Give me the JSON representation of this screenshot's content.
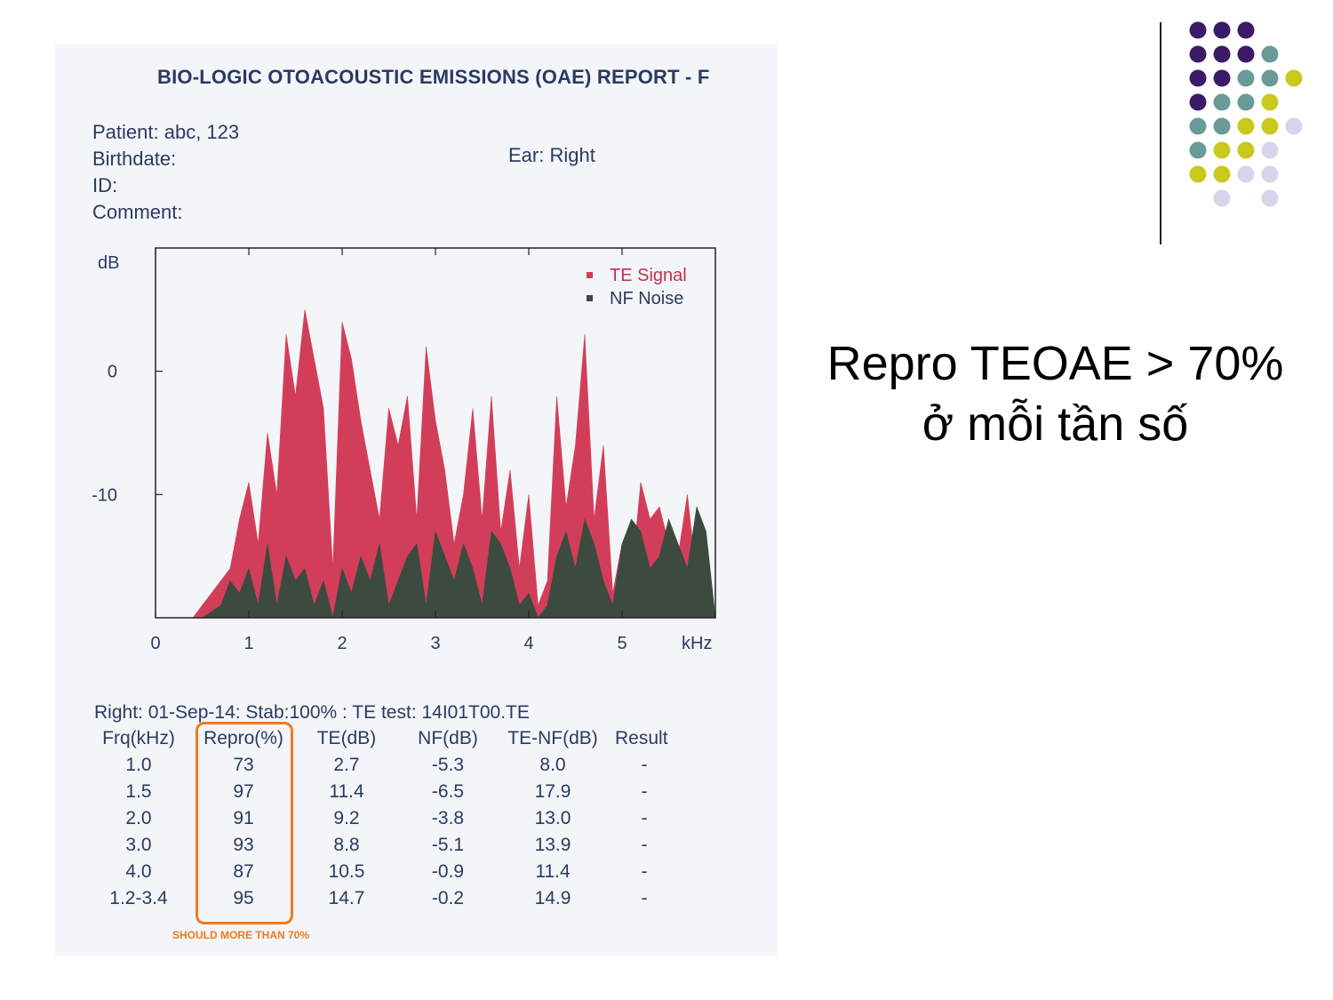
{
  "report": {
    "title": "BIO-LOGIC OTOACOUSTIC EMISSIONS (OAE) REPORT - F",
    "patient": "Patient: abc, 123",
    "birthdate": "Birthdate:",
    "id": "ID:",
    "comment": "Comment:",
    "ear": "Ear: Right",
    "test_line": "Right: 01-Sep-14: Stab:100% : TE test: 14I01T00.TE",
    "note": "SHOULD MORE THAN 70%",
    "table": {
      "headers": [
        "Frq(kHz)",
        "Repro(%)",
        "TE(dB)",
        "NF(dB)",
        "TE-NF(dB)",
        "Result"
      ],
      "rows": [
        [
          "1.0",
          "73",
          "2.7",
          "-5.3",
          "8.0",
          "-"
        ],
        [
          "1.5",
          "97",
          "11.4",
          "-6.5",
          "17.9",
          "-"
        ],
        [
          "2.0",
          "91",
          "9.2",
          "-3.8",
          "13.0",
          "-"
        ],
        [
          "3.0",
          "93",
          "8.8",
          "-5.1",
          "13.9",
          "-"
        ],
        [
          "4.0",
          "87",
          "10.5",
          "-0.9",
          "11.4",
          "-"
        ],
        [
          "1.2-3.4",
          "95",
          "14.7",
          "-0.2",
          "14.9",
          "-"
        ]
      ]
    }
  },
  "chart_data": {
    "type": "area",
    "ylabel": "dB",
    "xlabel": "kHz",
    "xlim": [
      0,
      6
    ],
    "ylim": [
      -20,
      10
    ],
    "xticks": [
      "0",
      "1",
      "2",
      "3",
      "4",
      "5"
    ],
    "yticks": [
      "0",
      "-10"
    ],
    "series": [
      {
        "name": "TE Signal",
        "color": "#d23e5a",
        "x": [
          0.4,
          0.5,
          0.6,
          0.7,
          0.8,
          0.9,
          1.0,
          1.1,
          1.2,
          1.3,
          1.4,
          1.5,
          1.6,
          1.7,
          1.8,
          1.9,
          2.0,
          2.1,
          2.2,
          2.3,
          2.4,
          2.5,
          2.6,
          2.7,
          2.8,
          2.9,
          3.0,
          3.1,
          3.2,
          3.3,
          3.4,
          3.5,
          3.6,
          3.7,
          3.8,
          3.9,
          4.0,
          4.1,
          4.2,
          4.3,
          4.4,
          4.5,
          4.6,
          4.7,
          4.8,
          4.9,
          5.0,
          5.1,
          5.2,
          5.3,
          5.4,
          5.5,
          5.6,
          5.7,
          5.8,
          5.9,
          6.0
        ],
        "y": [
          -20,
          -19,
          -18,
          -17,
          -16,
          -12,
          -9,
          -14,
          -5,
          -10,
          3,
          -2,
          5,
          1,
          -3,
          -16,
          4,
          1,
          -4,
          -8,
          -12,
          -3,
          -6,
          -2,
          -12,
          2,
          -4,
          -8,
          -14,
          -10,
          -3,
          -12,
          -2,
          -13,
          -8,
          -16,
          -10,
          -19,
          -17,
          -2,
          -11,
          -6,
          3,
          -12,
          -6,
          -18,
          -14,
          -17,
          -9,
          -12,
          -11,
          -14,
          -15,
          -10,
          -17,
          -18,
          -20
        ]
      },
      {
        "name": "NF Noise",
        "color": "#3c4a3f",
        "x": [
          0.4,
          0.5,
          0.6,
          0.7,
          0.8,
          0.9,
          1.0,
          1.1,
          1.2,
          1.3,
          1.4,
          1.5,
          1.6,
          1.7,
          1.8,
          1.9,
          2.0,
          2.1,
          2.2,
          2.3,
          2.4,
          2.5,
          2.6,
          2.7,
          2.8,
          2.9,
          3.0,
          3.1,
          3.2,
          3.3,
          3.4,
          3.5,
          3.6,
          3.7,
          3.8,
          3.9,
          4.0,
          4.1,
          4.2,
          4.3,
          4.4,
          4.5,
          4.6,
          4.7,
          4.8,
          4.9,
          5.0,
          5.1,
          5.2,
          5.3,
          5.4,
          5.5,
          5.6,
          5.7,
          5.8,
          5.9,
          6.0
        ],
        "y": [
          -20,
          -20,
          -19.5,
          -19,
          -17,
          -18,
          -16,
          -19,
          -14,
          -19,
          -15,
          -17,
          -16,
          -19,
          -17,
          -20,
          -16,
          -18,
          -15,
          -17,
          -14,
          -19,
          -17,
          -15,
          -14,
          -19,
          -13,
          -15,
          -17,
          -14,
          -16,
          -19,
          -13,
          -14,
          -16,
          -19,
          -18,
          -20,
          -19,
          -15,
          -13,
          -16,
          -12,
          -14,
          -17,
          -19,
          -14,
          -12,
          -13,
          -16,
          -15,
          -12,
          -14,
          -16,
          -11,
          -13,
          -20
        ]
      }
    ],
    "legend": "top-right"
  },
  "caption": {
    "line1": "Repro TEOAE > 70%",
    "line2": "ở mỗi tần số"
  },
  "decoration": {
    "dot_colors": [
      "#3d1a66",
      "#6a9a98",
      "#c9c81f",
      "#d4d4ea"
    ]
  }
}
